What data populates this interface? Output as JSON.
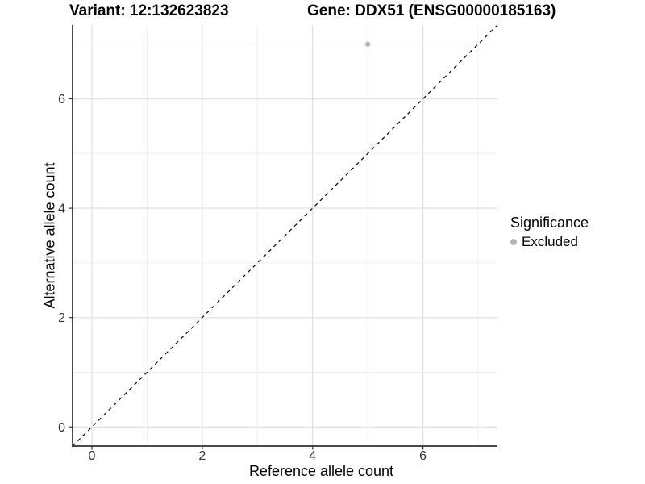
{
  "header": {
    "variant_title": "Variant: 12:132623823",
    "gene_title": "Gene: DDX51 (ENSG00000185163)"
  },
  "chart_data": {
    "type": "scatter",
    "title": "Variant: 12:132623823   Gene: DDX51 (ENSG00000185163)",
    "xlabel": "Reference allele count",
    "ylabel": "Alternative allele count",
    "xlim": [
      -0.35,
      7.35
    ],
    "ylim": [
      -0.35,
      7.35
    ],
    "x_major_ticks": [
      0,
      2,
      4,
      6
    ],
    "y_major_ticks": [
      0,
      2,
      4,
      6
    ],
    "x_minor_ticks": [
      1,
      3,
      5,
      7
    ],
    "y_minor_ticks": [
      1,
      3,
      5,
      7
    ],
    "grid": true,
    "reference_line": {
      "description": "identity line y = x",
      "from": [
        -0.35,
        -0.35
      ],
      "to": [
        7.35,
        7.35
      ],
      "style": "dashed",
      "color": "#000000"
    },
    "series": [
      {
        "name": "Excluded",
        "color": "#b7b7b7",
        "points": [
          {
            "x": 5,
            "y": 7
          }
        ]
      }
    ],
    "legend": {
      "title": "Significance",
      "position": "right",
      "entries": [
        {
          "label": "Excluded",
          "color": "#b4b4b4"
        }
      ]
    },
    "colors": {
      "background": "#ffffff",
      "grid_major": "#e4e4e4",
      "grid_minor": "#efefef",
      "axis_line": "#2f2f2f",
      "tick_mark": "#333333",
      "tick_text": "#333333",
      "title_text": "#000000"
    }
  }
}
